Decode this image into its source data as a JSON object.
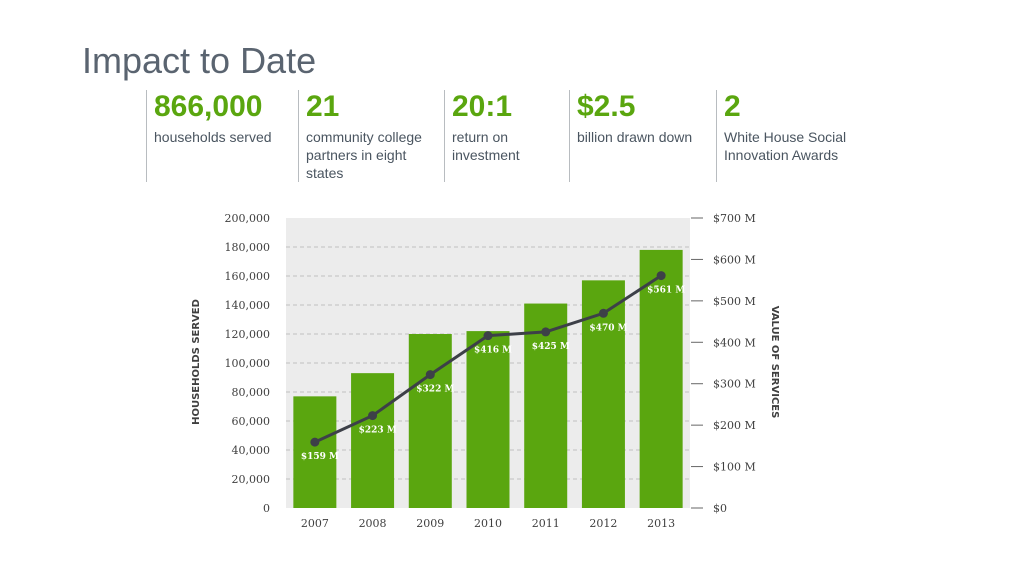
{
  "title": "Impact to Date",
  "stats": [
    {
      "value": "866,000",
      "label": "households served"
    },
    {
      "value": "21",
      "label": "community college partners in eight states"
    },
    {
      "value": "20:1",
      "label": "return on investment"
    },
    {
      "value": "$2.5",
      "label": "billion drawn down"
    },
    {
      "value": "2",
      "label": "White House Social Innovation Awards"
    }
  ],
  "chart_data": {
    "type": "bar",
    "categories": [
      "2007",
      "2008",
      "2009",
      "2010",
      "2011",
      "2012",
      "2013"
    ],
    "series": [
      {
        "name": "HOUSEHOLDS SERVED",
        "type": "bar",
        "axis": "left",
        "values": [
          77000,
          93000,
          120000,
          122000,
          141000,
          157000,
          178000
        ]
      },
      {
        "name": "VALUE OF SERVICES",
        "type": "line",
        "axis": "right",
        "values": [
          159,
          223,
          322,
          416,
          425,
          470,
          561
        ],
        "labels": [
          "$159 M",
          "$223 M",
          "$322 M",
          "$416 M",
          "$425 M",
          "$470 M",
          "$561 M"
        ]
      }
    ],
    "ylabel": "HOUSEHOLDS SERVED",
    "ylabel_right": "VALUE OF SERVICES",
    "ylim": [
      0,
      200000
    ],
    "ylim_right": [
      0,
      700
    ],
    "yticks": [
      "200,000",
      "180,000",
      "160,000",
      "140,000",
      "120,000",
      "100,000",
      "80,000",
      "60,000",
      "40,000",
      "20,000",
      "0"
    ],
    "yticks_right": [
      "$700 M",
      "$600 M",
      "$500 M",
      "$400 M",
      "$300 M",
      "$200 M",
      "$100 M",
      "$0"
    ],
    "grid": true,
    "colors": {
      "bar": "#5aa60f",
      "line": "#3d4048",
      "plot_bg": "#ececec",
      "grid": "#bfbfbf"
    }
  }
}
